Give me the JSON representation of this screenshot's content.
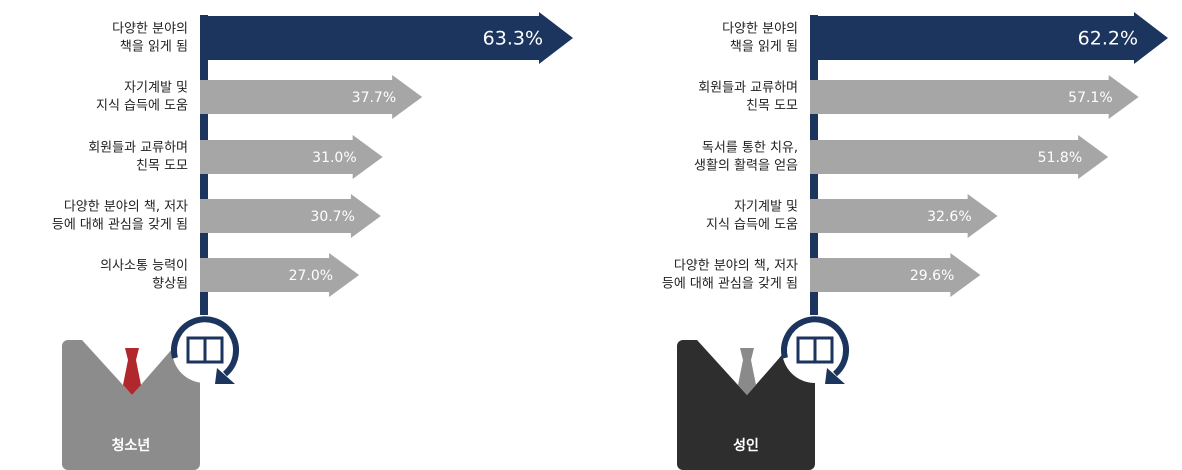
{
  "chart_data": [
    {
      "type": "arrow-bar",
      "title": "청소년",
      "categories": [
        [
          "다양한 분야의",
          "책을 읽게 됨"
        ],
        [
          "자기계발 및",
          "지식 습득에 도움"
        ],
        [
          "회원들과 교류하며",
          "친목 도모"
        ],
        [
          "다양한 분야의 책, 저자",
          "등에 대해 관심을 갖게 됨"
        ],
        [
          "의사소통 능력이",
          "향상됨"
        ]
      ],
      "values": [
        63.3,
        37.7,
        31.0,
        30.7,
        27.0
      ],
      "value_labels": [
        "63.3%",
        "37.7%",
        "31.0%",
        "30.7%",
        "27.0%"
      ],
      "colors": [
        "#1b355e",
        "#a6a6a6",
        "#a6a6a6",
        "#a6a6a6",
        "#a6a6a6"
      ],
      "figure_color": "#8c8c8c",
      "tie_color": "#b0282c"
    },
    {
      "type": "arrow-bar",
      "title": "성인",
      "categories": [
        [
          "다양한 분야의",
          "책을 읽게 됨"
        ],
        [
          "회원들과 교류하며",
          "친목 도모"
        ],
        [
          "독서를 통한 치유,",
          "생활의 활력을 얻음"
        ],
        [
          "자기계발 및",
          "지식 습득에 도움"
        ],
        [
          "다양한 분야의 책, 저자",
          "등에 대해 관심을 갖게 됨"
        ]
      ],
      "values": [
        62.2,
        57.1,
        51.8,
        32.6,
        29.6
      ],
      "value_labels": [
        "62.2%",
        "57.1%",
        "51.8%",
        "32.6%",
        "29.6%"
      ],
      "colors": [
        "#1b355e",
        "#a6a6a6",
        "#a6a6a6",
        "#a6a6a6",
        "#a6a6a6"
      ],
      "figure_color": "#2e2e2e",
      "tie_color": "#8a8a8a"
    }
  ]
}
